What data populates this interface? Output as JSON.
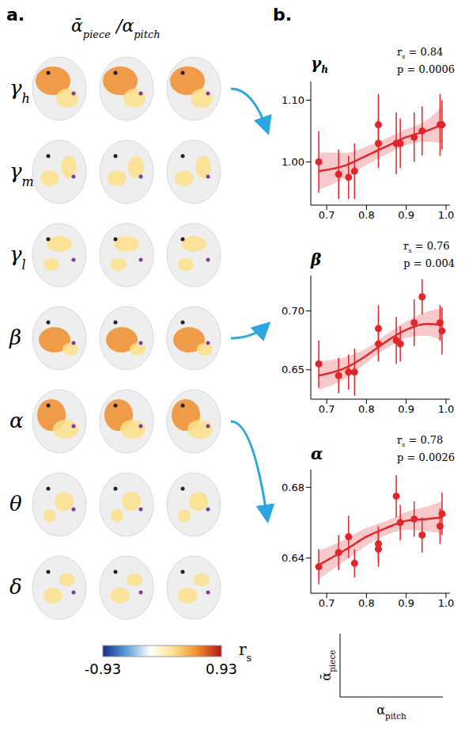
{
  "panel_a": {
    "letter": "a.",
    "title": [
      {
        "text": "ᾱ",
        "sub": "piece"
      },
      {
        "text": " /α",
        "sub": "pitch"
      }
    ],
    "bands": [
      {
        "text": "γ",
        "sub": "h"
      },
      {
        "text": "γ",
        "sub": "m"
      },
      {
        "text": "γ",
        "sub": "l"
      },
      {
        "text": "β"
      },
      {
        "text": "α"
      },
      {
        "text": "θ"
      },
      {
        "text": "δ"
      }
    ],
    "colorbar": {
      "range": [
        -0.93,
        0.93
      ],
      "ticks": [
        -0.93,
        0.93
      ],
      "colors": [
        "#1a2a8c",
        "#5aa0d8",
        "#ffffff",
        "#fbe08a",
        "#f08c2a",
        "#b3151a"
      ],
      "label": {
        "text": "r",
        "sub": "s"
      }
    }
  },
  "panel_b": {
    "letter": "b.",
    "key_axes": {
      "ylabel": {
        "text": "ᾱ",
        "sub": "piece"
      },
      "xlabel": {
        "text": "α",
        "sub": "pitch"
      }
    }
  },
  "chart_data": [
    {
      "type": "scatter",
      "title": {
        "text": "γ",
        "sub": "h"
      },
      "annotations": [
        {
          "text": "r",
          "sub": "s",
          "rest": " = 0.84"
        },
        {
          "text": "p = 0.0006"
        }
      ],
      "color": "#e0262b",
      "marker": "circle",
      "x": [
        0.68,
        0.73,
        0.755,
        0.77,
        0.83,
        0.83,
        0.875,
        0.885,
        0.92,
        0.94,
        0.985,
        0.99
      ],
      "values": [
        1.0,
        0.98,
        0.975,
        0.985,
        1.06,
        1.03,
        1.03,
        1.03,
        1.04,
        1.05,
        1.06,
        1.06
      ],
      "errors": [
        0.05,
        0.04,
        0.035,
        0.045,
        0.05,
        0.04,
        0.05,
        0.04,
        0.04,
        0.04,
        0.05,
        0.04
      ],
      "fit": {
        "x": [
          0.68,
          0.75,
          0.8,
          0.85,
          0.9,
          0.95,
          0.99
        ],
        "values": [
          0.985,
          0.995,
          1.01,
          1.025,
          1.04,
          1.05,
          1.06
        ],
        "lower": [
          0.955,
          0.975,
          0.995,
          1.012,
          1.027,
          1.033,
          1.03
        ],
        "upper": [
          1.015,
          1.015,
          1.025,
          1.038,
          1.053,
          1.067,
          1.09
        ]
      },
      "xlim": [
        0.66,
        1.01
      ],
      "xticks": [
        0.7,
        0.8,
        0.9,
        {
          "value": 1,
          "label": "1.0"
        }
      ],
      "ylim": [
        0.93,
        1.13
      ],
      "yticks": [
        {
          "value": 1,
          "label": "1.00"
        },
        {
          "value": 1.1,
          "label": "1.10"
        }
      ]
    },
    {
      "type": "scatter",
      "title": {
        "text": "β"
      },
      "annotations": [
        {
          "text": "r",
          "sub": "s",
          "rest": " = 0.76"
        },
        {
          "text": "p = 0.004"
        }
      ],
      "color": "#e0262b",
      "marker": "circle",
      "x": [
        0.68,
        0.73,
        0.755,
        0.77,
        0.83,
        0.83,
        0.875,
        0.885,
        0.92,
        0.94,
        0.985,
        0.99
      ],
      "values": [
        0.655,
        0.645,
        0.648,
        0.648,
        0.672,
        0.685,
        0.675,
        0.672,
        0.69,
        0.712,
        0.69,
        0.683
      ],
      "errors": [
        0.02,
        0.015,
        0.015,
        0.02,
        0.015,
        0.02,
        0.02,
        0.015,
        0.02,
        0.015,
        0.015,
        0.02
      ],
      "fit": {
        "x": [
          0.68,
          0.75,
          0.8,
          0.85,
          0.9,
          0.95,
          0.99
        ],
        "values": [
          0.645,
          0.652,
          0.662,
          0.674,
          0.684,
          0.689,
          0.688
        ],
        "lower": [
          0.633,
          0.643,
          0.656,
          0.668,
          0.677,
          0.679,
          0.674
        ],
        "upper": [
          0.657,
          0.661,
          0.668,
          0.68,
          0.691,
          0.699,
          0.702
        ]
      },
      "xlim": [
        0.66,
        1.01
      ],
      "xticks": [
        0.7,
        0.8,
        0.9,
        {
          "value": 1,
          "label": "1.0"
        }
      ],
      "ylim": [
        0.625,
        0.73
      ],
      "yticks": [
        0.65,
        {
          "value": 0.7,
          "label": "0.70"
        }
      ]
    },
    {
      "type": "scatter",
      "title": {
        "text": "α"
      },
      "annotations": [
        {
          "text": "r",
          "sub": "s",
          "rest": " = 0.78"
        },
        {
          "text": "p = 0.0026"
        }
      ],
      "color": "#e0262b",
      "marker": "circle",
      "x": [
        0.68,
        0.73,
        0.755,
        0.77,
        0.83,
        0.83,
        0.875,
        0.885,
        0.92,
        0.94,
        0.985,
        0.99
      ],
      "values": [
        0.635,
        0.643,
        0.652,
        0.637,
        0.645,
        0.648,
        0.675,
        0.66,
        0.662,
        0.653,
        0.658,
        0.665
      ],
      "errors": [
        0.01,
        0.01,
        0.012,
        0.008,
        0.01,
        0.01,
        0.012,
        0.01,
        0.01,
        0.01,
        0.01,
        0.012
      ],
      "fit": {
        "x": [
          0.68,
          0.75,
          0.8,
          0.85,
          0.9,
          0.95,
          0.99
        ],
        "values": [
          0.636,
          0.645,
          0.652,
          0.657,
          0.661,
          0.662,
          0.663
        ],
        "lower": [
          0.628,
          0.639,
          0.647,
          0.653,
          0.656,
          0.655,
          0.654
        ],
        "upper": [
          0.644,
          0.651,
          0.657,
          0.661,
          0.666,
          0.669,
          0.672
        ]
      },
      "xlim": [
        0.66,
        1.01
      ],
      "xticks": [
        0.7,
        0.8,
        0.9,
        {
          "value": 1,
          "label": "1.0"
        }
      ],
      "ylim": [
        0.62,
        0.69
      ],
      "yticks": [
        0.64,
        0.68
      ]
    }
  ]
}
